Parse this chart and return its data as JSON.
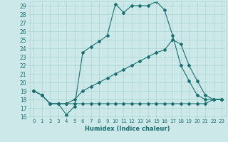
{
  "xlabel": "Humidex (Indice chaleur)",
  "bg_color": "#cce8e8",
  "line_color": "#1a7070",
  "grid_color": "#aad4d4",
  "xlim": [
    -0.5,
    23.5
  ],
  "ylim": [
    16,
    29.5
  ],
  "xticks": [
    0,
    1,
    2,
    3,
    4,
    5,
    6,
    7,
    8,
    9,
    10,
    11,
    12,
    13,
    14,
    15,
    16,
    17,
    18,
    19,
    20,
    21,
    22,
    23
  ],
  "yticks": [
    16,
    17,
    18,
    19,
    20,
    21,
    22,
    23,
    24,
    25,
    26,
    27,
    28,
    29
  ],
  "line1": {
    "x": [
      0,
      1,
      2,
      3,
      4,
      5,
      6,
      7,
      8,
      9,
      10,
      11,
      12,
      13,
      14,
      15,
      16,
      17,
      18,
      19,
      20,
      21,
      22,
      23
    ],
    "y": [
      19.0,
      18.5,
      17.5,
      17.5,
      17.5,
      17.5,
      17.5,
      17.5,
      17.5,
      17.5,
      17.5,
      17.5,
      17.5,
      17.5,
      17.5,
      17.5,
      17.5,
      17.5,
      17.5,
      17.5,
      17.5,
      17.5,
      18.0,
      18.0
    ]
  },
  "line2": {
    "x": [
      0,
      1,
      2,
      3,
      4,
      5,
      6,
      7,
      8,
      9,
      10,
      11,
      12,
      13,
      14,
      15,
      16,
      17,
      18,
      19,
      20,
      21,
      22,
      23
    ],
    "y": [
      19.0,
      18.5,
      17.5,
      17.5,
      17.5,
      18.0,
      19.0,
      19.5,
      20.0,
      20.5,
      21.0,
      21.5,
      22.0,
      22.5,
      23.0,
      23.5,
      23.8,
      25.0,
      24.5,
      22.0,
      20.2,
      18.5,
      18.0,
      18.0
    ]
  },
  "line3": {
    "x": [
      0,
      1,
      2,
      3,
      4,
      5,
      6,
      7,
      8,
      9,
      10,
      11,
      12,
      13,
      14,
      15,
      16,
      17,
      18,
      19,
      20,
      21,
      22,
      23
    ],
    "y": [
      19.0,
      18.5,
      17.5,
      17.5,
      16.2,
      17.2,
      23.5,
      24.2,
      24.8,
      25.5,
      29.2,
      28.2,
      29.0,
      29.0,
      29.0,
      29.5,
      28.5,
      25.5,
      22.0,
      20.2,
      18.5,
      18.0,
      18.0,
      18.0
    ]
  }
}
